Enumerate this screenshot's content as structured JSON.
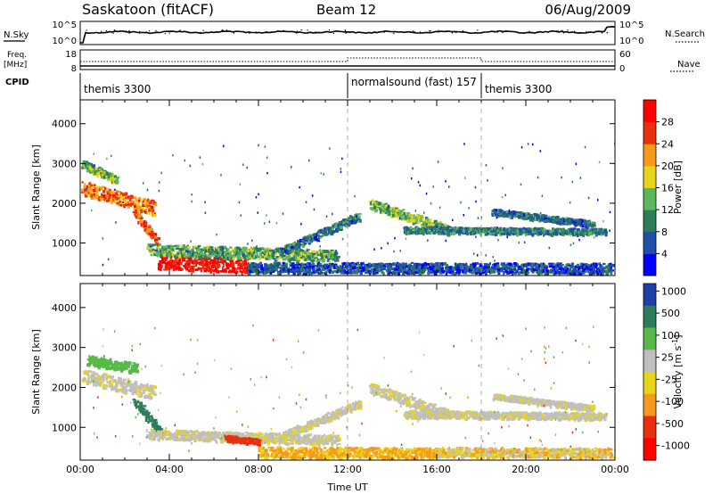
{
  "header": {
    "station": "Saskatoon (fitACF)",
    "beam": "Beam 12",
    "date": "06/Aug/2009"
  },
  "top_panels": {
    "nsky_label": "N.Sky",
    "nsearch_label": "N.Search",
    "left_ticks": [
      "10^5",
      "10^0"
    ],
    "right_ticks": [
      "10^5",
      "10^0"
    ],
    "freq_label_1": "Freq.",
    "freq_label_2": "[MHz]",
    "freq_ticks": [
      "18",
      "8"
    ],
    "nave_label": "Nave",
    "nave_ticks": [
      "60",
      "0"
    ],
    "cpid_label": "CPID",
    "cpid_segments": [
      {
        "start_hour": 0,
        "label": "themis 3300"
      },
      {
        "start_hour": 12,
        "label": "normalsound (fast) 157"
      },
      {
        "start_hour": 18,
        "label": "themis 3300"
      }
    ]
  },
  "chart_data": [
    {
      "type": "heatmap",
      "panel": "power",
      "xlabel": "",
      "ylabel": "Slant Range [km]",
      "x_range_hours": [
        0,
        24
      ],
      "ylim": [
        180,
        4600
      ],
      "y_ticks": [
        1000,
        2000,
        3000,
        4000
      ],
      "colorbar_label": "Power [dB]",
      "colorbar_ticks": [
        "4",
        "8",
        "12",
        "16",
        "20",
        "24",
        "28"
      ],
      "colorbar_range": [
        0,
        30
      ],
      "colors": [
        "#0000ff",
        "#1f4fa8",
        "#2e7d5a",
        "#5cb85c",
        "#e8d418",
        "#f59a1a",
        "#e8300e",
        "#ff0000"
      ],
      "features": [
        {
          "name": "early-band",
          "start_hour": 0.1,
          "end_hour": 3.3,
          "range_start": 2400,
          "range_end": 1900,
          "width": 350,
          "value": 22
        },
        {
          "name": "upper-scatter",
          "start_hour": 0.1,
          "end_hour": 1.6,
          "range_start": 3000,
          "range_end": 2600,
          "width": 200,
          "value": 12
        },
        {
          "name": "descending-band",
          "start_hour": 2.4,
          "end_hour": 3.4,
          "range_start": 1800,
          "range_end": 1100,
          "width": 250,
          "value": 24
        },
        {
          "name": "morning-echo",
          "start_hour": 3.5,
          "end_hour": 7.5,
          "range_start": 550,
          "range_end": 450,
          "width": 380,
          "value": 28
        },
        {
          "name": "near-range",
          "start_hour": 3.0,
          "end_hour": 11.5,
          "range_start": 850,
          "range_end": 700,
          "width": 280,
          "value": 12
        },
        {
          "name": "ground-layer",
          "start_hour": 7.5,
          "end_hour": 23.8,
          "range_start": 400,
          "range_end": 380,
          "width": 260,
          "value": 6
        },
        {
          "name": "rising-band",
          "start_hour": 9.0,
          "end_hour": 12.5,
          "range_start": 800,
          "range_end": 1700,
          "width": 200,
          "value": 8
        },
        {
          "name": "midday-band",
          "start_hour": 13.0,
          "end_hour": 16.5,
          "range_start": 2000,
          "range_end": 1350,
          "width": 250,
          "value": 14
        },
        {
          "name": "afternoon-band",
          "start_hour": 14.5,
          "end_hour": 23.5,
          "range_start": 1350,
          "range_end": 1300,
          "width": 160,
          "value": 9
        },
        {
          "name": "evening-band",
          "start_hour": 18.5,
          "end_hour": 23.0,
          "range_start": 1800,
          "range_end": 1500,
          "width": 150,
          "value": 8
        }
      ]
    },
    {
      "type": "heatmap",
      "panel": "velocity",
      "xlabel": "Time UT",
      "ylabel": "Slant Range [km]",
      "x_range_hours": [
        0,
        24
      ],
      "x_ticks": [
        "00:00",
        "04:00",
        "08:00",
        "12:00",
        "16:00",
        "20:00",
        "00:00"
      ],
      "ylim": [
        180,
        4600
      ],
      "y_ticks": [
        1000,
        2000,
        3000,
        4000
      ],
      "colorbar_label": "Velocity [m s^-1]",
      "colorbar_ticks": [
        "1000",
        "500",
        "100",
        "25",
        "-25",
        "-100",
        "-500",
        "-1000"
      ],
      "colors": [
        "#1f3fa6",
        "#2e7d5a",
        "#58b848",
        "#bfbfbf",
        "#e8d418",
        "#f59a1a",
        "#e8300e",
        "#ff0000"
      ],
      "features": [
        {
          "name": "early-band",
          "start_hour": 0.1,
          "end_hour": 3.3,
          "range_start": 2300,
          "range_end": 1900,
          "width": 350,
          "value": 0
        },
        {
          "name": "early-band-flank",
          "start_hour": 0.3,
          "end_hour": 2.5,
          "range_start": 2700,
          "range_end": 2500,
          "width": 250,
          "value": 150
        },
        {
          "name": "descending-band",
          "start_hour": 2.4,
          "end_hour": 3.6,
          "range_start": 1700,
          "range_end": 900,
          "width": 220,
          "value": 300
        },
        {
          "name": "near-range",
          "start_hour": 3.0,
          "end_hour": 11.5,
          "range_start": 850,
          "range_end": 700,
          "width": 250,
          "value": 0
        },
        {
          "name": "morning-echo",
          "start_hour": 6.5,
          "end_hour": 8.0,
          "range_start": 750,
          "range_end": 650,
          "width": 150,
          "value": -300
        },
        {
          "name": "ground-layer",
          "start_hour": 8.0,
          "end_hour": 16.0,
          "range_start": 400,
          "range_end": 380,
          "width": 260,
          "value": -70
        },
        {
          "name": "ground-layer-late",
          "start_hour": 16.0,
          "end_hour": 23.8,
          "range_start": 400,
          "range_end": 380,
          "width": 240,
          "value": -40
        },
        {
          "name": "rising-band",
          "start_hour": 9.0,
          "end_hour": 12.5,
          "range_start": 800,
          "range_end": 1600,
          "width": 200,
          "value": 0
        },
        {
          "name": "midday-band",
          "start_hour": 13.0,
          "end_hour": 16.5,
          "range_start": 2000,
          "range_end": 1350,
          "width": 250,
          "value": 0
        },
        {
          "name": "afternoon-band",
          "start_hour": 14.5,
          "end_hour": 23.5,
          "range_start": 1350,
          "range_end": 1300,
          "width": 180,
          "value": 0
        },
        {
          "name": "evening-band",
          "start_hour": 18.5,
          "end_hour": 23.0,
          "range_start": 1800,
          "range_end": 1500,
          "width": 150,
          "value": 0
        }
      ]
    }
  ]
}
